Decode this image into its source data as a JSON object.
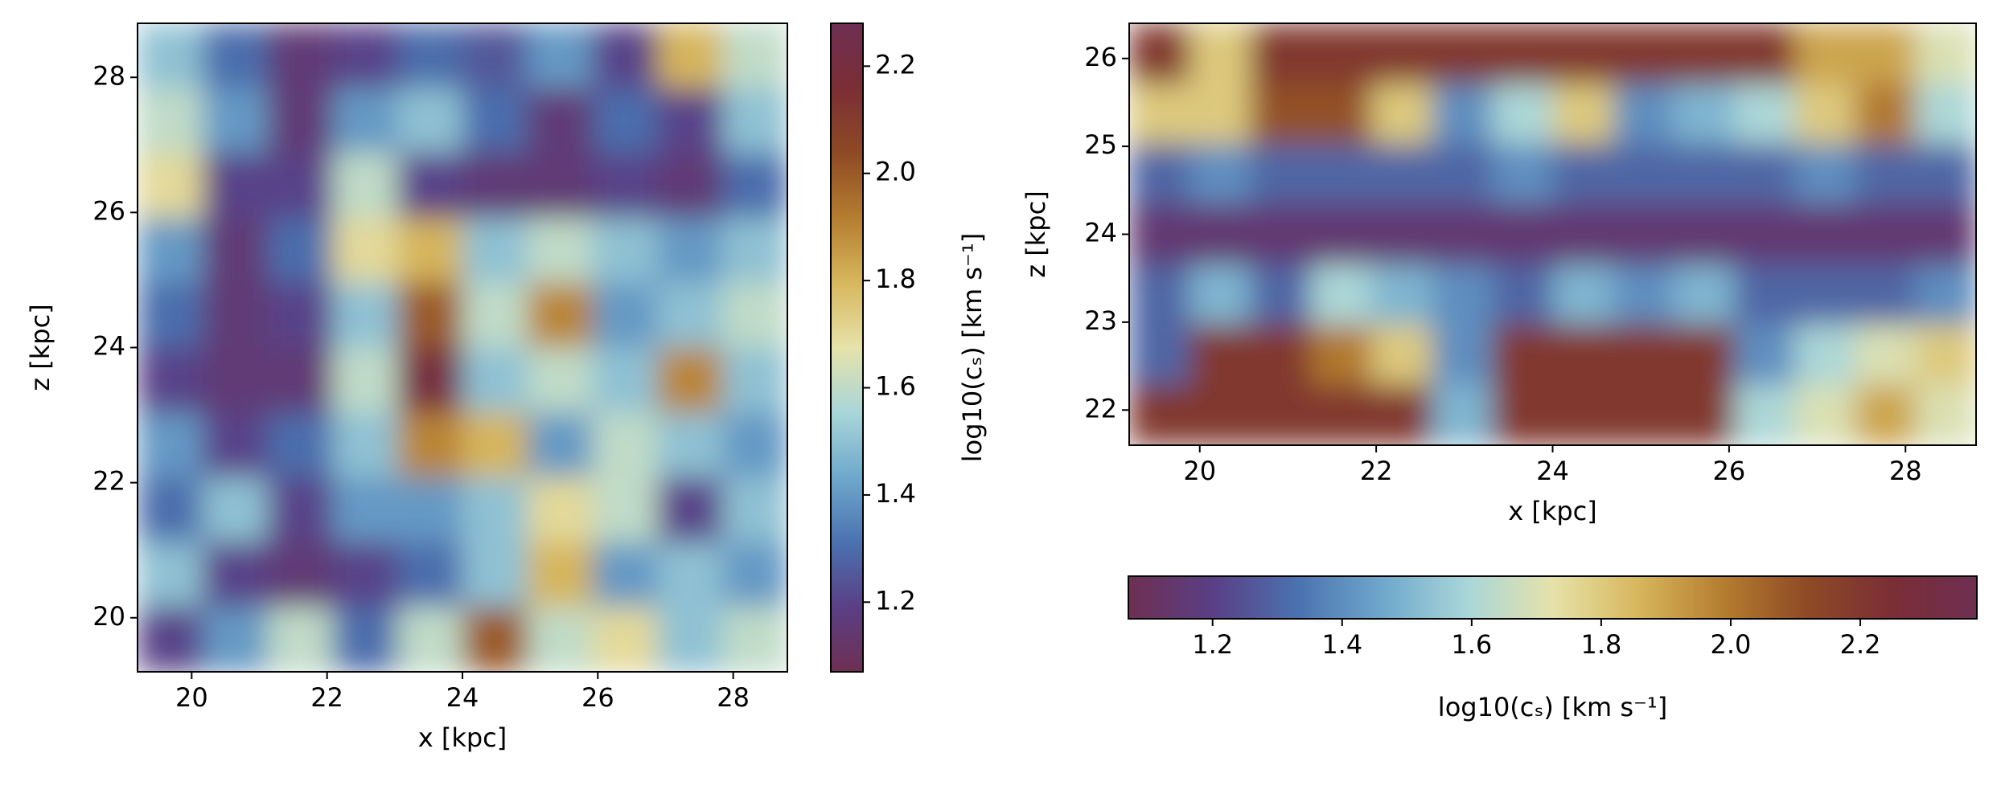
{
  "chart_data": [
    {
      "type": "heatmap",
      "xlabel": "x [kpc]",
      "ylabel": "z [kpc]",
      "xlim": [
        19.2,
        28.8
      ],
      "ylim": [
        19.2,
        28.8
      ],
      "xticks": [
        20,
        22,
        24,
        26,
        28
      ],
      "yticks": [
        20,
        22,
        24,
        26,
        28
      ],
      "values": [
        [
          1.5,
          1.3,
          1.15,
          1.2,
          1.3,
          1.25,
          1.4,
          1.2,
          1.8,
          1.6
        ],
        [
          1.6,
          1.4,
          1.15,
          1.4,
          1.5,
          1.3,
          1.15,
          1.3,
          1.2,
          1.5
        ],
        [
          1.7,
          1.2,
          1.2,
          1.6,
          1.2,
          1.15,
          1.15,
          1.2,
          1.15,
          1.3
        ],
        [
          1.4,
          1.15,
          1.3,
          1.7,
          1.8,
          1.5,
          1.6,
          1.5,
          1.4,
          1.5
        ],
        [
          1.3,
          1.15,
          1.2,
          1.5,
          2.0,
          1.6,
          1.9,
          1.4,
          1.5,
          1.6
        ],
        [
          1.2,
          1.15,
          1.15,
          1.6,
          2.2,
          1.5,
          1.6,
          1.5,
          1.9,
          1.5
        ],
        [
          1.4,
          1.2,
          1.3,
          1.5,
          1.9,
          1.8,
          1.4,
          1.6,
          1.5,
          1.4
        ],
        [
          1.3,
          1.5,
          1.2,
          1.4,
          1.4,
          1.5,
          1.7,
          1.6,
          1.2,
          1.5
        ],
        [
          1.5,
          1.2,
          1.15,
          1.2,
          1.3,
          1.5,
          1.8,
          1.4,
          1.5,
          1.4
        ],
        [
          1.2,
          1.4,
          1.6,
          1.3,
          1.6,
          2.0,
          1.6,
          1.7,
          1.5,
          1.6
        ]
      ],
      "colormap": [
        "#6e2f52",
        "#5a3f85",
        "#4b72b0",
        "#6fa8cc",
        "#a9d6d9",
        "#e6e2a9",
        "#d7b75d",
        "#b57d30",
        "#8e4a25",
        "#7a2e35",
        "#6e2f52"
      ],
      "colorbar": {
        "orientation": "vertical",
        "label": "log10(cₛ) [km s⁻¹]",
        "lim": [
          1.07,
          2.28
        ],
        "ticks": [
          1.2,
          1.4,
          1.6,
          1.8,
          {
            "value": 2,
            "label": "2.0"
          },
          2.2
        ]
      }
    },
    {
      "type": "heatmap",
      "xlabel": "x [kpc]",
      "ylabel": "z [kpc]",
      "xlim": [
        19.2,
        28.8
      ],
      "ylim": [
        21.6,
        26.4
      ],
      "xticks": [
        20,
        22,
        24,
        26,
        28
      ],
      "yticks": [
        22,
        23,
        24,
        25,
        26
      ],
      "values": [
        [
          2.2,
          1.8,
          2.2,
          2.2,
          2.2,
          2.2,
          2.2,
          2.2,
          2.2,
          2.2,
          2.2,
          1.9,
          1.9,
          1.7
        ],
        [
          1.8,
          1.8,
          2.1,
          2.1,
          1.8,
          1.4,
          1.6,
          1.8,
          1.4,
          1.5,
          1.6,
          1.8,
          2.0,
          1.6
        ],
        [
          1.3,
          1.4,
          1.3,
          1.3,
          1.3,
          1.3,
          1.4,
          1.3,
          1.3,
          1.3,
          1.3,
          1.4,
          1.3,
          1.3
        ],
        [
          1.15,
          1.15,
          1.15,
          1.15,
          1.15,
          1.15,
          1.15,
          1.15,
          1.15,
          1.15,
          1.15,
          1.15,
          1.15,
          1.15
        ],
        [
          1.3,
          1.5,
          1.3,
          1.6,
          1.5,
          1.4,
          1.3,
          1.5,
          1.4,
          1.5,
          1.3,
          1.3,
          1.3,
          1.4
        ],
        [
          1.3,
          2.2,
          2.2,
          2.0,
          1.8,
          1.4,
          2.2,
          2.2,
          2.2,
          2.2,
          1.4,
          1.6,
          1.7,
          1.8
        ],
        [
          2.2,
          2.2,
          2.2,
          2.2,
          2.2,
          1.5,
          2.2,
          2.2,
          2.2,
          2.2,
          1.6,
          1.7,
          1.9,
          1.7
        ]
      ],
      "colormap": [
        "#6e2f52",
        "#5a3f85",
        "#4b72b0",
        "#6fa8cc",
        "#a9d6d9",
        "#e6e2a9",
        "#d7b75d",
        "#b57d30",
        "#8e4a25",
        "#7a2e35",
        "#6e2f52"
      ],
      "colorbar": {
        "orientation": "horizontal",
        "label": "log10(cₛ) [km s⁻¹]",
        "lim": [
          1.07,
          2.38
        ],
        "ticks": [
          1.2,
          1.4,
          1.6,
          1.8,
          {
            "value": 2,
            "label": "2.0"
          },
          2.2
        ]
      }
    }
  ]
}
